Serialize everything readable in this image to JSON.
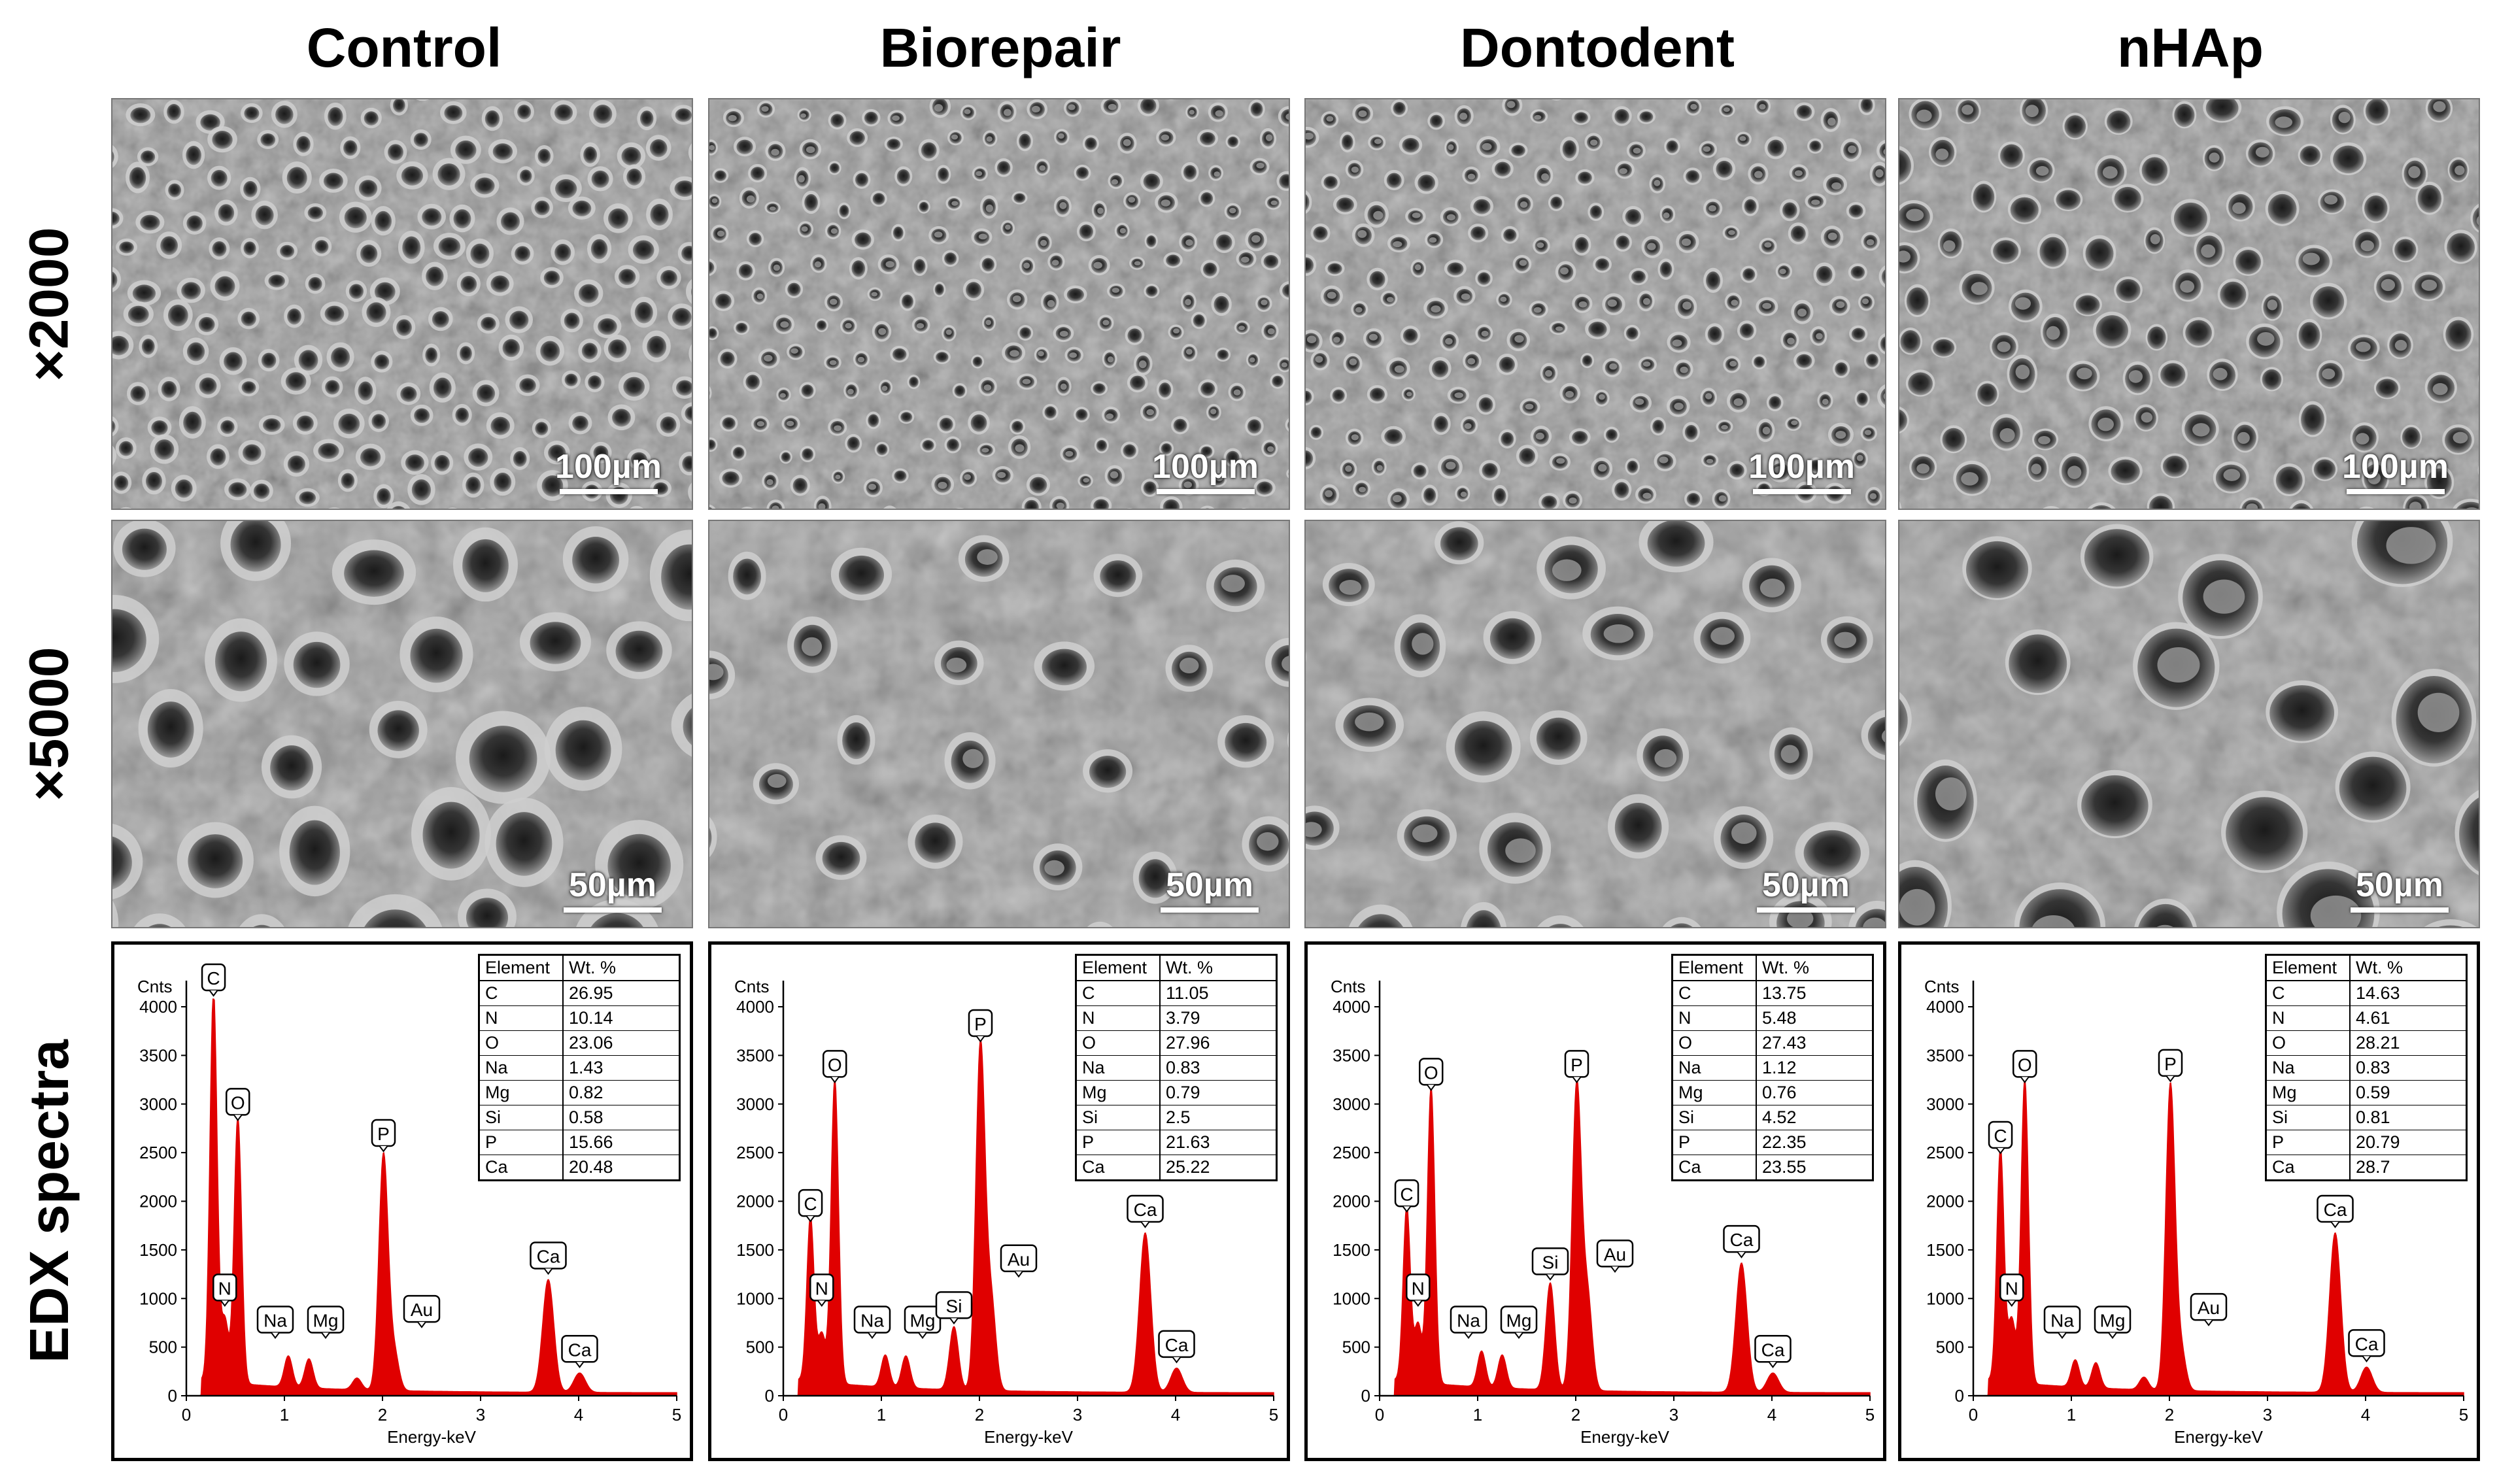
{
  "columns": [
    {
      "title": "Control",
      "scale_2000": "100µm",
      "scale_5000": "50µm",
      "edx": {
        "table_header": [
          "Element",
          "Wt. %"
        ],
        "composition": [
          {
            "element": "C",
            "wt": "26.95"
          },
          {
            "element": "N",
            "wt": "10.14"
          },
          {
            "element": "O",
            "wt": "23.06"
          },
          {
            "element": "Na",
            "wt": "1.43"
          },
          {
            "element": "Mg",
            "wt": "0.82"
          },
          {
            "element": "Si",
            "wt": "0.58"
          },
          {
            "element": "P",
            "wt": "15.66"
          },
          {
            "element": "Ca",
            "wt": "20.48"
          }
        ],
        "peaks": [
          {
            "label": "C",
            "energy": 0.277,
            "counts": 4020
          },
          {
            "label": "N",
            "energy": 0.392,
            "counts": 650
          },
          {
            "label": "O",
            "energy": 0.525,
            "counts": 2740
          },
          {
            "label": "Na",
            "energy": 1.04,
            "counts": 320
          },
          {
            "label": "Mg",
            "energy": 1.25,
            "counts": 300
          },
          {
            "label": "Si",
            "energy": 1.74,
            "counts": 120
          },
          {
            "label": "P",
            "energy": 2.01,
            "counts": 2420
          },
          {
            "label": "Au",
            "energy": 2.12,
            "counts": 380
          },
          {
            "label": "Ca",
            "energy": 3.69,
            "counts": 1160
          },
          {
            "label": "Ca",
            "energy": 4.01,
            "counts": 200
          }
        ],
        "peak_labels": [
          {
            "text": "C",
            "energy": 0.277,
            "counts": 4020
          },
          {
            "text": "N",
            "energy": 0.392,
            "counts": 650
          },
          {
            "text": "O",
            "energy": 0.525,
            "counts": 2740
          },
          {
            "text": "Na",
            "energy": 1.04,
            "counts": 320
          },
          {
            "text": "Mg",
            "energy": 1.25,
            "counts": 300
          },
          {
            "text": "P",
            "energy": 2.01,
            "counts": 2420
          },
          {
            "text": "Au",
            "energy": 2.12,
            "counts": 380
          },
          {
            "text": "Ca",
            "energy": 3.69,
            "counts": 1160
          },
          {
            "text": "Ca",
            "energy": 4.01,
            "counts": 200
          }
        ]
      }
    },
    {
      "title": "Biorepair",
      "scale_2000": "100µm",
      "scale_5000": "50µm",
      "edx": {
        "table_header": [
          "Element",
          "Wt. %"
        ],
        "composition": [
          {
            "element": "C",
            "wt": "11.05"
          },
          {
            "element": "N",
            "wt": "3.79"
          },
          {
            "element": "O",
            "wt": "27.96"
          },
          {
            "element": "Na",
            "wt": "0.83"
          },
          {
            "element": "Mg",
            "wt": "0.79"
          },
          {
            "element": "Si",
            "wt": "2.5"
          },
          {
            "element": "P",
            "wt": "21.63"
          },
          {
            "element": "Ca",
            "wt": "25.22"
          }
        ],
        "peaks": [
          {
            "label": "C",
            "energy": 0.277,
            "counts": 1700
          },
          {
            "label": "N",
            "energy": 0.392,
            "counts": 500
          },
          {
            "label": "O",
            "energy": 0.525,
            "counts": 3130
          },
          {
            "label": "Na",
            "energy": 1.04,
            "counts": 330
          },
          {
            "label": "Mg",
            "energy": 1.25,
            "counts": 330
          },
          {
            "label": "Si",
            "energy": 1.74,
            "counts": 650
          },
          {
            "label": "P",
            "energy": 2.01,
            "counts": 3550
          },
          {
            "label": "Au",
            "energy": 2.12,
            "counts": 900
          },
          {
            "label": "Ca",
            "energy": 3.69,
            "counts": 1640
          },
          {
            "label": "Ca",
            "energy": 4.01,
            "counts": 250
          }
        ],
        "peak_labels": [
          {
            "text": "C",
            "energy": 0.277,
            "counts": 1700
          },
          {
            "text": "N",
            "energy": 0.392,
            "counts": 500
          },
          {
            "text": "O",
            "energy": 0.525,
            "counts": 3130
          },
          {
            "text": "Na",
            "energy": 1.04,
            "counts": 330
          },
          {
            "text": "Mg",
            "energy": 1.25,
            "counts": 330
          },
          {
            "text": "Si",
            "energy": 1.74,
            "counts": 650
          },
          {
            "text": "P",
            "energy": 2.01,
            "counts": 3550
          },
          {
            "text": "Au",
            "energy": 2.12,
            "counts": 900
          },
          {
            "text": "Ca",
            "energy": 3.69,
            "counts": 1640
          },
          {
            "text": "Ca",
            "energy": 4.01,
            "counts": 250
          }
        ]
      }
    },
    {
      "title": "Dontodent",
      "scale_2000": "100µm",
      "scale_5000": "50µm",
      "edx": {
        "table_header": [
          "Element",
          "Wt. %"
        ],
        "composition": [
          {
            "element": "C",
            "wt": "13.75"
          },
          {
            "element": "N",
            "wt": "5.48"
          },
          {
            "element": "O",
            "wt": "27.43"
          },
          {
            "element": "Na",
            "wt": "1.12"
          },
          {
            "element": "Mg",
            "wt": "0.76"
          },
          {
            "element": "Si",
            "wt": "4.52"
          },
          {
            "element": "P",
            "wt": "22.35"
          },
          {
            "element": "Ca",
            "wt": "23.55"
          }
        ],
        "peaks": [
          {
            "label": "C",
            "energy": 0.277,
            "counts": 1800
          },
          {
            "label": "N",
            "energy": 0.392,
            "counts": 600
          },
          {
            "label": "O",
            "energy": 0.525,
            "counts": 3050
          },
          {
            "label": "Na",
            "energy": 1.04,
            "counts": 370
          },
          {
            "label": "Mg",
            "energy": 1.25,
            "counts": 340
          },
          {
            "label": "Si",
            "energy": 1.74,
            "counts": 1100
          },
          {
            "label": "P",
            "energy": 2.01,
            "counts": 3130
          },
          {
            "label": "Au",
            "energy": 2.12,
            "counts": 950
          },
          {
            "label": "Ca",
            "energy": 3.69,
            "counts": 1330
          },
          {
            "label": "Ca",
            "energy": 4.01,
            "counts": 200
          }
        ],
        "peak_labels": [
          {
            "text": "C",
            "energy": 0.277,
            "counts": 1800
          },
          {
            "text": "N",
            "energy": 0.392,
            "counts": 600
          },
          {
            "text": "O",
            "energy": 0.525,
            "counts": 3050
          },
          {
            "text": "Na",
            "energy": 1.04,
            "counts": 370
          },
          {
            "text": "Mg",
            "energy": 1.25,
            "counts": 340
          },
          {
            "text": "Si",
            "energy": 1.74,
            "counts": 1100
          },
          {
            "text": "P",
            "energy": 2.01,
            "counts": 3130
          },
          {
            "text": "Au",
            "energy": 2.12,
            "counts": 950
          },
          {
            "text": "Ca",
            "energy": 3.69,
            "counts": 1330
          },
          {
            "text": "Ca",
            "energy": 4.01,
            "counts": 200
          }
        ]
      }
    },
    {
      "title": "nHAp",
      "scale_2000": "100µm",
      "scale_5000": "50µm",
      "edx": {
        "table_header": [
          "Element",
          "Wt. %"
        ],
        "composition": [
          {
            "element": "C",
            "wt": "14.63"
          },
          {
            "element": "N",
            "wt": "4.61"
          },
          {
            "element": "O",
            "wt": "28.21"
          },
          {
            "element": "Na",
            "wt": "0.83"
          },
          {
            "element": "Mg",
            "wt": "0.59"
          },
          {
            "element": "Si",
            "wt": "0.81"
          },
          {
            "element": "P",
            "wt": "20.79"
          },
          {
            "element": "Ca",
            "wt": "28.7"
          }
        ],
        "peaks": [
          {
            "label": "C",
            "energy": 0.277,
            "counts": 2400
          },
          {
            "label": "N",
            "energy": 0.392,
            "counts": 650
          },
          {
            "label": "O",
            "energy": 0.525,
            "counts": 3130
          },
          {
            "label": "Na",
            "energy": 1.04,
            "counts": 280
          },
          {
            "label": "Mg",
            "energy": 1.25,
            "counts": 260
          },
          {
            "label": "Si",
            "energy": 1.74,
            "counts": 130
          },
          {
            "label": "P",
            "energy": 2.01,
            "counts": 3140
          },
          {
            "label": "Au",
            "energy": 2.12,
            "counts": 400
          },
          {
            "label": "Ca",
            "energy": 3.69,
            "counts": 1640
          },
          {
            "label": "Ca",
            "energy": 4.01,
            "counts": 260
          }
        ],
        "peak_labels": [
          {
            "text": "C",
            "energy": 0.277,
            "counts": 2400
          },
          {
            "text": "N",
            "energy": 0.392,
            "counts": 650
          },
          {
            "text": "O",
            "energy": 0.525,
            "counts": 3130
          },
          {
            "text": "Na",
            "energy": 1.04,
            "counts": 280
          },
          {
            "text": "Mg",
            "energy": 1.25,
            "counts": 260
          },
          {
            "text": "P",
            "energy": 2.01,
            "counts": 3140
          },
          {
            "text": "Au",
            "energy": 2.12,
            "counts": 400
          },
          {
            "text": "Ca",
            "energy": 3.69,
            "counts": 1640
          },
          {
            "text": "Ca",
            "energy": 4.01,
            "counts": 260
          }
        ]
      }
    }
  ],
  "rows": [
    "×2000",
    "×5000",
    "EDX spectra"
  ],
  "chart_data": [
    {
      "type": "area",
      "name_ref": "Control",
      "xlabel": "Energy-keV",
      "ylabel": "Cnts",
      "xlim": [
        0,
        5
      ],
      "ylim": [
        0,
        4000
      ],
      "xticks": [
        0,
        1,
        2,
        3,
        4,
        5
      ],
      "yticks": [
        0,
        500,
        1000,
        1500,
        2000,
        2500,
        3000,
        3500,
        4000
      ]
    },
    {
      "type": "area",
      "name_ref": "Biorepair",
      "xlabel": "Energy-keV",
      "ylabel": "Cnts",
      "xlim": [
        0,
        5
      ],
      "ylim": [
        0,
        4000
      ],
      "xticks": [
        0,
        1,
        2,
        3,
        4,
        5
      ],
      "yticks": [
        0,
        500,
        1000,
        1500,
        2000,
        2500,
        3000,
        3500,
        4000
      ]
    },
    {
      "type": "area",
      "name_ref": "Dontodent",
      "xlabel": "Energy-keV",
      "ylabel": "Cnts",
      "xlim": [
        0,
        5
      ],
      "ylim": [
        0,
        4000
      ],
      "xticks": [
        0,
        1,
        2,
        3,
        4,
        5
      ],
      "yticks": [
        0,
        500,
        1000,
        1500,
        2000,
        2500,
        3000,
        3500,
        4000
      ]
    },
    {
      "type": "area",
      "name_ref": "nHAp",
      "xlabel": "Energy-keV",
      "ylabel": "Cnts",
      "xlim": [
        0,
        5
      ],
      "ylim": [
        0,
        4000
      ],
      "xticks": [
        0,
        1,
        2,
        3,
        4,
        5
      ],
      "yticks": [
        0,
        500,
        1000,
        1500,
        2000,
        2500,
        3000,
        3500,
        4000
      ]
    }
  ],
  "colors": {
    "spectrum": "#e00000",
    "sem_base": "#8a8a8a",
    "sem_light": "#cfcfcf",
    "sem_dark": "#2a2a2a"
  }
}
